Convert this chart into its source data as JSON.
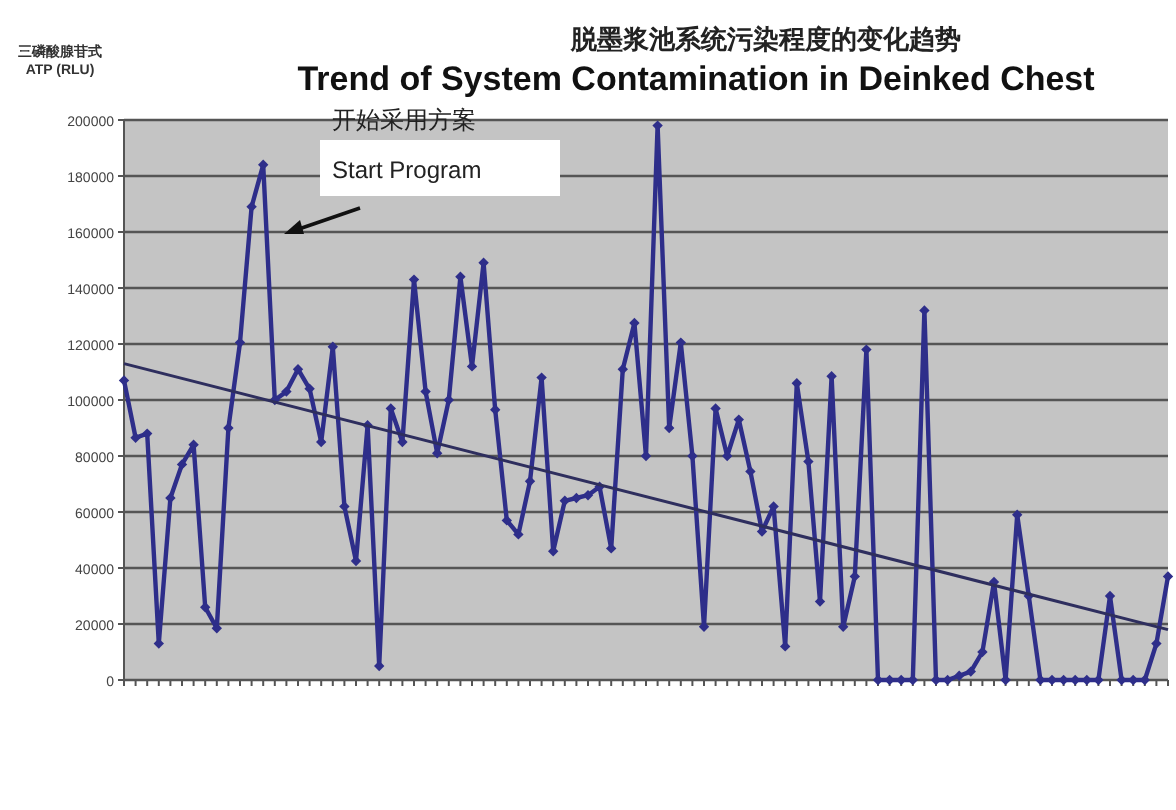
{
  "chart_data": {
    "type": "line",
    "title": "脱墨浆池系统污染程度的变化趋势",
    "subtitle": "Trend of System Contamination in Deinked Chest",
    "ylabel": "三磷酸腺苷式 ATP (RLU)",
    "annotations": [
      "开始采用方案",
      "Start Program"
    ],
    "categories": [
      null,
      null,
      null,
      null,
      null,
      null,
      null,
      null,
      null,
      null,
      null,
      null,
      null,
      null,
      null,
      null,
      null,
      null,
      null,
      null,
      null,
      null,
      null,
      null,
      null,
      null,
      null,
      null,
      null,
      null,
      null,
      null,
      null,
      null,
      null,
      null,
      null,
      null,
      null,
      null,
      null,
      null,
      null,
      null,
      null,
      null,
      null,
      null,
      null,
      null,
      null,
      null,
      null,
      null,
      null,
      null,
      null,
      null,
      null,
      null,
      null,
      null,
      null,
      null,
      null,
      null,
      null,
      null,
      null,
      null,
      null,
      null,
      null,
      null,
      null,
      null,
      null,
      null,
      null,
      null,
      null,
      null,
      null,
      null,
      null,
      null,
      null,
      null,
      null,
      null,
      null
    ],
    "ylim": [
      0,
      200000
    ],
    "yticks": [
      0,
      20000,
      40000,
      60000,
      80000,
      100000,
      120000,
      140000,
      160000,
      180000,
      200000
    ],
    "grid": "y",
    "marker": "diamond",
    "line_style": "solid",
    "series": [
      {
        "color": "#2e2e8a",
        "values": [
          107000,
          86500,
          88000,
          13000,
          65000,
          77000,
          84000,
          26000,
          18500,
          90000,
          120500,
          169000,
          184000,
          100000,
          103000,
          111000,
          104000,
          85000,
          119000,
          62000,
          42500,
          91000,
          5000,
          97000,
          85000,
          143000,
          103000,
          81000,
          100000,
          144000,
          112000,
          149000,
          96500,
          57000,
          52000,
          71000,
          108000,
          46000,
          64000,
          65000,
          66000,
          69000,
          47000,
          111000,
          127500,
          80000,
          198000,
          90000,
          120500,
          80000,
          19000,
          97000,
          80000,
          93000,
          74500,
          53000,
          62000,
          12000,
          106000,
          78000,
          28000,
          108500,
          19000,
          37000,
          118000,
          0,
          0,
          0,
          0,
          132000,
          0,
          0,
          1500,
          3000,
          10000,
          35000,
          0,
          59000,
          30000,
          0,
          0,
          0,
          0,
          0,
          0,
          30000,
          0,
          0,
          0,
          13000,
          37000
        ]
      },
      {
        "type": "line",
        "marker": "none",
        "color": "#2e2e5e",
        "values": [
          113000,
          null,
          null,
          null,
          null,
          null,
          null,
          null,
          null,
          null,
          null,
          null,
          null,
          null,
          null,
          null,
          null,
          null,
          null,
          null,
          null,
          null,
          null,
          null,
          null,
          null,
          null,
          null,
          null,
          null,
          null,
          null,
          null,
          null,
          null,
          null,
          null,
          null,
          null,
          null,
          null,
          null,
          null,
          null,
          null,
          null,
          null,
          null,
          null,
          null,
          null,
          null,
          null,
          null,
          null,
          null,
          null,
          null,
          null,
          null,
          null,
          null,
          null,
          null,
          null,
          null,
          null,
          null,
          null,
          null,
          null,
          null,
          null,
          null,
          null,
          null,
          null,
          null,
          null,
          null,
          null,
          null,
          null,
          null,
          null,
          null,
          null,
          null,
          null,
          null,
          18000
        ]
      }
    ]
  }
}
